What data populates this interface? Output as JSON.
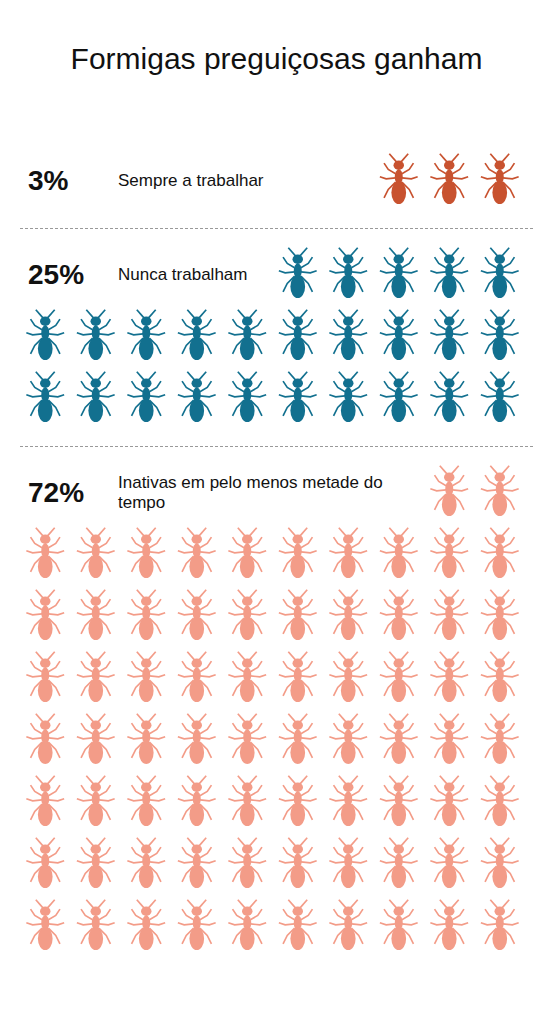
{
  "chart_data": {
    "type": "pictogram",
    "title": "Formigas preguiçosas ganham",
    "categories": [
      "Sempre a trabalhar",
      "Nunca trabalham",
      "Inativas em pelo menos metade do tempo"
    ],
    "values": [
      3,
      25,
      72
    ],
    "value_labels": [
      "3%",
      "25%",
      "72%"
    ],
    "colors": [
      "#c8522f",
      "#12708f",
      "#f39c88"
    ],
    "tick_labels": false
  }
}
